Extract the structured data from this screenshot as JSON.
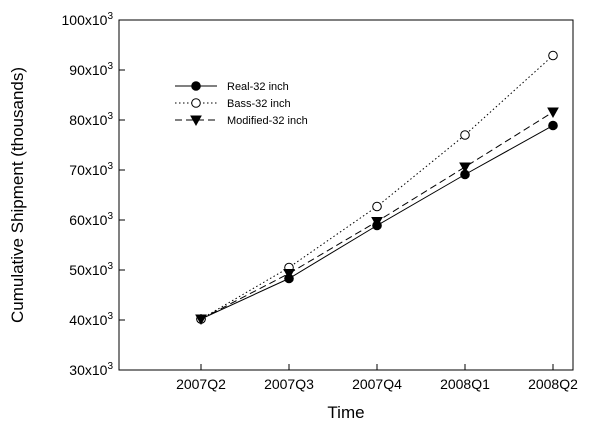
{
  "chart_data": {
    "type": "line",
    "title": "",
    "xlabel": "Time",
    "ylabel": "Cumulative Shipment (thousands)",
    "categories": [
      "2007Q2",
      "2007Q3",
      "2007Q4",
      "2008Q1",
      "2008Q2"
    ],
    "ylim": [
      30000,
      100000
    ],
    "y_ticks": [
      {
        "value": 30000,
        "base": "30x10",
        "exp": "3"
      },
      {
        "value": 40000,
        "base": "40x10",
        "exp": "3"
      },
      {
        "value": 50000,
        "base": "50x10",
        "exp": "3"
      },
      {
        "value": 60000,
        "base": "60x10",
        "exp": "3"
      },
      {
        "value": 70000,
        "base": "70x10",
        "exp": "3"
      },
      {
        "value": 80000,
        "base": "80x10",
        "exp": "3"
      },
      {
        "value": 90000,
        "base": "90x10",
        "exp": "3"
      },
      {
        "value": 100000,
        "base": "100x10",
        "exp": "3"
      }
    ],
    "grid": false,
    "legend_position": "top-left",
    "series": [
      {
        "name": "Real-32 inch",
        "line_style": "solid",
        "marker": "filled-circle",
        "color": "#000000",
        "values": [
          40200,
          48300,
          58900,
          69100,
          78900
        ]
      },
      {
        "name": "Bass-32 inch",
        "line_style": "dotted",
        "marker": "open-circle",
        "color": "#000000",
        "values": [
          40200,
          50500,
          62700,
          77000,
          92900
        ]
      },
      {
        "name": "Modified-32 inch",
        "line_style": "dashed",
        "marker": "filled-triangle-down",
        "color": "#000000",
        "values": [
          40200,
          49300,
          59700,
          70600,
          81600
        ]
      }
    ]
  }
}
